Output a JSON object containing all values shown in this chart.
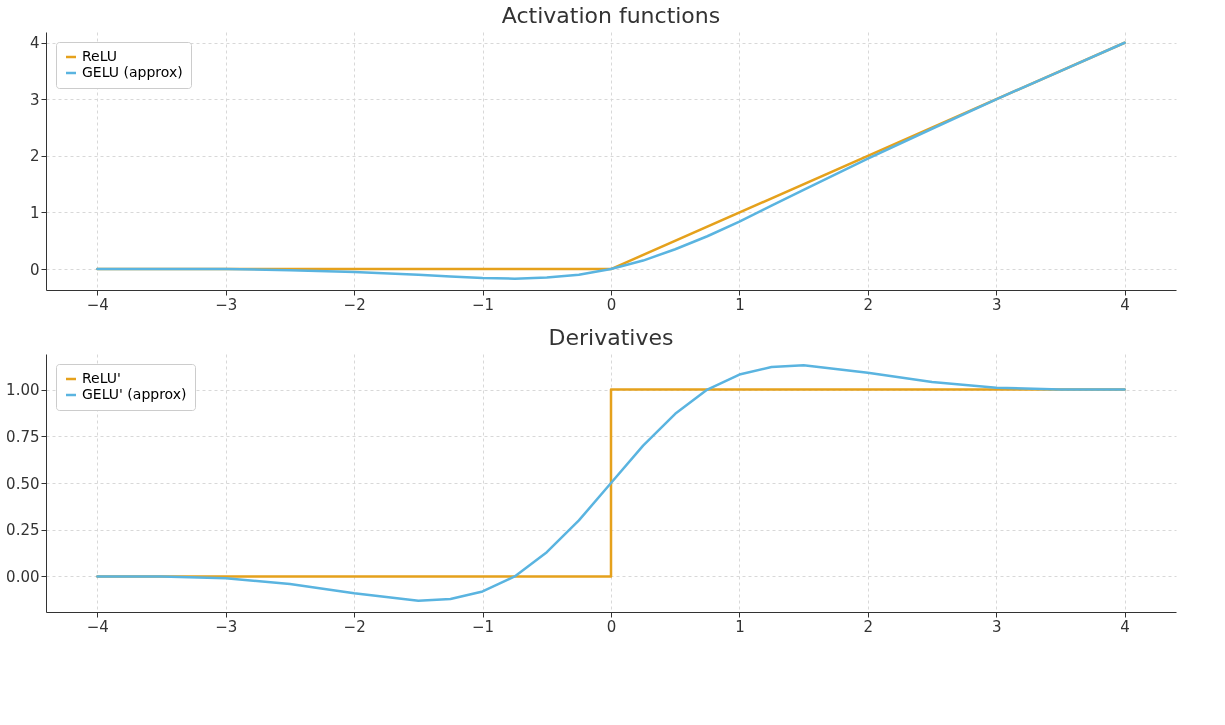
{
  "chart_data": [
    {
      "type": "line",
      "title": "Activation functions",
      "xlim": [
        -4.4,
        4.4
      ],
      "xticks": [
        -4,
        -3,
        -2,
        -1,
        0,
        1,
        2,
        3,
        4
      ],
      "ylim": [
        -0.37,
        4.19
      ],
      "yticks": [
        0,
        1,
        2,
        3,
        4
      ],
      "grid": true,
      "legend": "top left",
      "series": [
        {
          "name": "ReLU",
          "color": "#e5a11c",
          "x": [
            -4,
            0,
            4
          ],
          "values": [
            0,
            0,
            4
          ]
        },
        {
          "name": "GELU (approx)",
          "color": "#5ab4e0",
          "x": [
            -4,
            -3.5,
            -3,
            -2.5,
            -2,
            -1.5,
            -1.25,
            -1,
            -0.75,
            -0.5,
            -0.25,
            0,
            0.25,
            0.5,
            0.75,
            1,
            1.25,
            1.5,
            2,
            2.5,
            3,
            3.5,
            4
          ],
          "values": [
            0,
            0,
            0,
            -0.02,
            -0.05,
            -0.1,
            -0.13,
            -0.16,
            -0.17,
            -0.15,
            -0.1,
            0,
            0.15,
            0.35,
            0.58,
            0.84,
            1.12,
            1.4,
            1.95,
            2.48,
            3,
            3.5,
            4
          ]
        }
      ]
    },
    {
      "type": "line",
      "title": "Derivatives",
      "xlim": [
        -4.4,
        4.4
      ],
      "xticks": [
        -4,
        -3,
        -2,
        -1,
        0,
        1,
        2,
        3,
        4
      ],
      "ylim": [
        -0.19,
        1.19
      ],
      "yticks": [
        {
          "value": 0,
          "label": "0.00"
        },
        {
          "value": 0.25,
          "label": "0.25"
        },
        {
          "value": 0.5,
          "label": "0.50"
        },
        {
          "value": 0.75,
          "label": "0.75"
        },
        {
          "value": 1,
          "label": "1.00"
        }
      ],
      "grid": true,
      "legend": "top left",
      "series": [
        {
          "name": "ReLU'",
          "color": "#e5a11c",
          "x": [
            -4,
            0,
            0,
            4
          ],
          "values": [
            0,
            0,
            1,
            1
          ]
        },
        {
          "name": "GELU' (approx)",
          "color": "#5ab4e0",
          "x": [
            -4,
            -3.5,
            -3,
            -2.5,
            -2,
            -1.75,
            -1.5,
            -1.25,
            -1,
            -0.75,
            -0.5,
            -0.25,
            0,
            0.25,
            0.5,
            0.75,
            1,
            1.25,
            1.5,
            1.75,
            2,
            2.5,
            3,
            3.5,
            4
          ],
          "values": [
            0,
            0,
            -0.01,
            -0.04,
            -0.09,
            -0.11,
            -0.13,
            -0.12,
            -0.08,
            0,
            0.13,
            0.3,
            0.5,
            0.7,
            0.87,
            1,
            1.08,
            1.12,
            1.13,
            1.11,
            1.09,
            1.04,
            1.01,
            1,
            1
          ]
        }
      ]
    }
  ]
}
